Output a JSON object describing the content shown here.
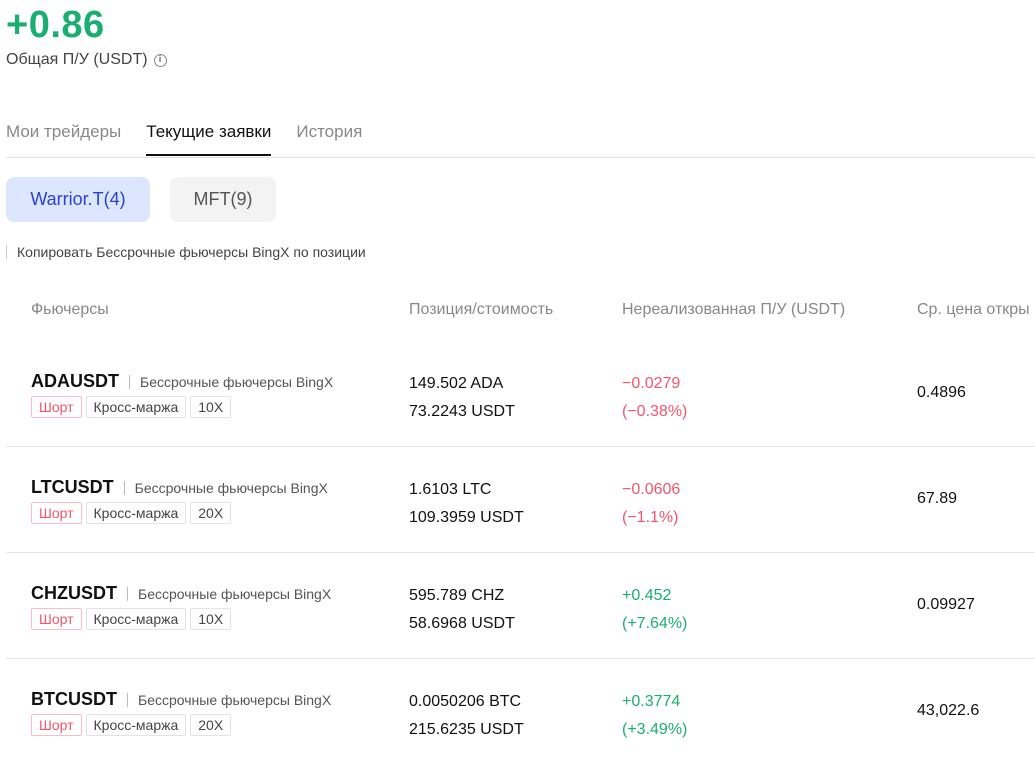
{
  "summary": {
    "total_pnl": "+0.86",
    "total_pnl_label": "Общая П/У (USDT)",
    "info_icon": "info-icon",
    "accent_color": "#1aae72"
  },
  "tabs": [
    {
      "label": "Мои трейдеры",
      "active": false
    },
    {
      "label": "Текущие заявки",
      "active": true
    },
    {
      "label": "История",
      "active": false
    }
  ],
  "traders": [
    {
      "label": "Warrior.T(4)",
      "active": true
    },
    {
      "label": "MFT(9)",
      "active": false
    }
  ],
  "notice": "Копировать Бессрочные фьючерсы BingX по позиции",
  "columns": [
    "Фьючерсы",
    "Позиция/стоимость",
    "Нереализованная П/У (USDT)",
    "Ср. цена откры"
  ],
  "rows": [
    {
      "symbol": "ADAUSDT",
      "desc": "Бессрочные фьючерсы BingX",
      "side": "Шорт",
      "margin": "Кросс-маржа",
      "leverage": "10X",
      "position": "149.502 ADA",
      "value": "73.2243 USDT",
      "pnl": "−0.0279",
      "pnl_pct": "(−0.38%)",
      "direction": "neg",
      "avg_price": "0.4896"
    },
    {
      "symbol": "LTCUSDT",
      "desc": "Бессрочные фьючерсы BingX",
      "side": "Шорт",
      "margin": "Кросс-маржа",
      "leverage": "20X",
      "position": "1.6103 LTC",
      "value": "109.3959 USDT",
      "pnl": "−0.0606",
      "pnl_pct": "(−1.1%)",
      "direction": "neg",
      "avg_price": "67.89"
    },
    {
      "symbol": "CHZUSDT",
      "desc": "Бессрочные фьючерсы BingX",
      "side": "Шорт",
      "margin": "Кросс-маржа",
      "leverage": "10X",
      "position": "595.789 CHZ",
      "value": "58.6968 USDT",
      "pnl": "+0.452",
      "pnl_pct": "(+7.64%)",
      "direction": "pos",
      "avg_price": "0.09927"
    },
    {
      "symbol": "BTCUSDT",
      "desc": "Бессрочные фьючерсы BingX",
      "side": "Шорт",
      "margin": "Кросс-маржа",
      "leverage": "20X",
      "position": "0.0050206 BTC",
      "value": "215.6235 USDT",
      "pnl": "+0.3774",
      "pnl_pct": "(+3.49%)",
      "direction": "pos",
      "avg_price": "43,022.6"
    }
  ]
}
